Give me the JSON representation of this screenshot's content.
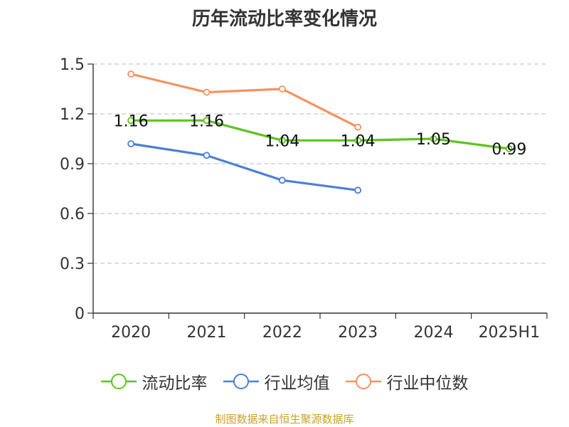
{
  "title": "历年流动比率变化情况",
  "source_note": "制图数据来自恒生聚源数据库",
  "chart_data": {
    "type": "line",
    "title": "历年流动比率变化情况",
    "categories": [
      "2020",
      "2021",
      "2022",
      "2023",
      "2024",
      "2025H1"
    ],
    "ylim": [
      0,
      1.5
    ],
    "yticks": [
      "0",
      "0.3",
      "0.6",
      "0.9",
      "1.2",
      "1.5"
    ],
    "grid": true,
    "legend_position": "bottom",
    "series": [
      {
        "name": "流动比率",
        "color": "#5dc41e",
        "values": [
          1.16,
          1.16,
          1.04,
          1.04,
          1.05,
          0.99
        ],
        "labels": [
          "1.16",
          "1.16",
          "1.04",
          "1.04",
          "1.05",
          "0.99"
        ]
      },
      {
        "name": "行业均值",
        "color": "#4a80d9",
        "values": [
          1.02,
          0.95,
          0.8,
          0.74,
          null,
          null
        ]
      },
      {
        "name": "行业中位数",
        "color": "#f59260",
        "values": [
          1.44,
          1.33,
          1.35,
          1.12,
          null,
          null
        ]
      }
    ]
  }
}
